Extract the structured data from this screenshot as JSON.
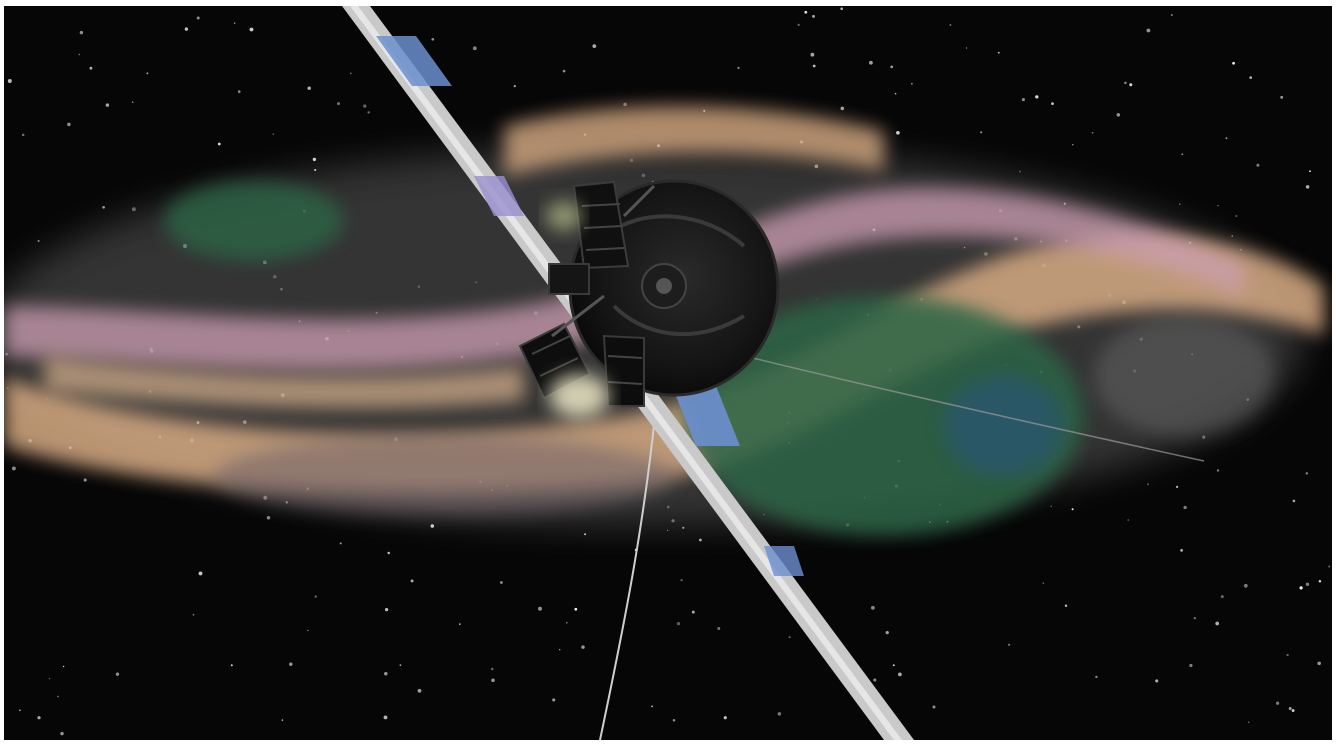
{
  "scene": {
    "colors": {
      "space": "#060606",
      "frame": "#ffffff",
      "band_peach": "#e2b48a",
      "band_pink": "#d9a7bd",
      "band_gray": "#8a8a8a",
      "green_patch": "#2f6b49",
      "blue_accent": "#6b8fcf",
      "boom_silver": "#c9c9c9",
      "spacecraft_body": "#121212"
    },
    "subjects": [
      "spacecraft",
      "magnetometer-boom",
      "antenna",
      "trailing-wire",
      "star-field",
      "glow-band"
    ]
  }
}
